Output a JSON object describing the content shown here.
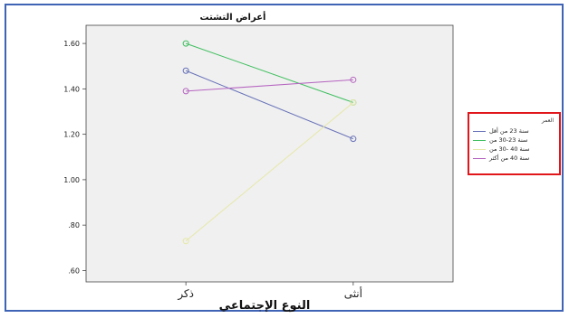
{
  "chart_data": {
    "type": "line",
    "title": "أعراض التشتت",
    "xlabel": "النوع الإجتماعي",
    "ylabel": "",
    "categories": [
      "ذكر",
      "أنثى"
    ],
    "ylim": [
      0.55,
      1.68
    ],
    "yticks": [
      ".60",
      ".80",
      "1.00",
      "1.20",
      "1.40",
      "1.60"
    ],
    "ytick_values": [
      0.6,
      0.8,
      1.0,
      1.2,
      1.4,
      1.6
    ],
    "legend": {
      "title": "العمر",
      "placement": "right"
    },
    "series": [
      {
        "name": "سنة 23 من أقل",
        "color": "#6670b8",
        "values": [
          1.48,
          1.18
        ]
      },
      {
        "name": "سنة 23-30 من",
        "color": "#3fbf5f",
        "values": [
          1.6,
          1.34
        ]
      },
      {
        "name": "سنة 40 -30 من",
        "color": "#e6e8a8",
        "values": [
          0.73,
          1.34
        ]
      },
      {
        "name": "سنة 40 من أكثر",
        "color": "#b565c0",
        "values": [
          1.39,
          1.44
        ]
      }
    ],
    "grid": false
  },
  "colors": {
    "plot_background": "#f0f0f0",
    "frame_border": "#3f63b5",
    "legend_border": "#e0161b"
  }
}
